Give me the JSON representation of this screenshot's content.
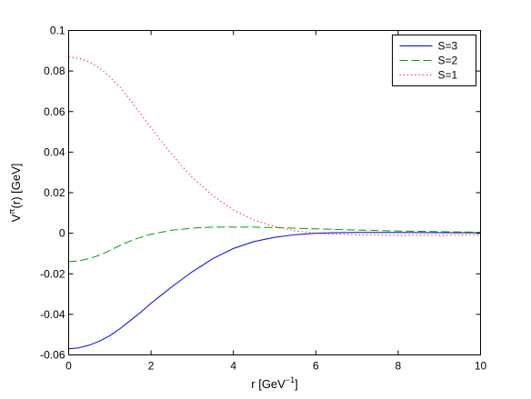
{
  "chart_data": {
    "type": "line",
    "xlabel_main": "r [GeV",
    "xlabel_sup": "−1",
    "xlabel_end": "]",
    "ylabel_main": "V",
    "ylabel_sup": "π",
    "ylabel_end": "(r) [GeV]",
    "xlim": [
      0,
      10
    ],
    "ylim": [
      -0.06,
      0.1
    ],
    "xticks": [
      0,
      2,
      4,
      6,
      8,
      10
    ],
    "xtick_labels": [
      "0",
      "2",
      "4",
      "6",
      "8",
      "10"
    ],
    "yticks": [
      -0.06,
      -0.04,
      -0.02,
      0,
      0.02,
      0.04,
      0.06,
      0.08,
      0.1
    ],
    "ytick_labels": [
      "-0.06",
      "-0.04",
      "-0.02",
      "0",
      "0.02",
      "0.04",
      "0.06",
      "0.08",
      "0.1"
    ],
    "grid": false,
    "legend_position": "top-right",
    "series": [
      {
        "name": "S=3",
        "color": "#0000ff",
        "dash": "solid",
        "x": [
          0,
          0.25,
          0.5,
          0.75,
          1,
          1.25,
          1.5,
          1.75,
          2,
          2.25,
          2.5,
          3,
          3.5,
          4,
          4.5,
          5,
          5.5,
          6,
          6.5,
          7,
          8,
          9,
          10
        ],
        "y": [
          -0.057,
          -0.0565,
          -0.0552,
          -0.0532,
          -0.0505,
          -0.047,
          -0.043,
          -0.039,
          -0.0345,
          -0.0305,
          -0.0265,
          -0.019,
          -0.0125,
          -0.0075,
          -0.0041,
          -0.002,
          -0.0007,
          0.0,
          0.0003,
          0.0004,
          0.0004,
          0.0003,
          0.0002
        ]
      },
      {
        "name": "S=2",
        "color": "#00a000",
        "dash": "dashed",
        "x": [
          0,
          0.25,
          0.5,
          0.75,
          1,
          1.25,
          1.5,
          1.75,
          2,
          2.5,
          3,
          3.5,
          4,
          4.5,
          5,
          6,
          7,
          8,
          9,
          10
        ],
        "y": [
          -0.014,
          -0.0136,
          -0.0125,
          -0.0108,
          -0.0085,
          -0.006,
          -0.0038,
          -0.002,
          -0.0005,
          0.0015,
          0.0025,
          0.003,
          0.003,
          0.003,
          0.0028,
          0.0022,
          0.0016,
          0.0011,
          0.0008,
          0.0005
        ]
      },
      {
        "name": "S=1",
        "color": "#ff0000",
        "dash": "dotted",
        "x": [
          0,
          0.25,
          0.5,
          0.75,
          1,
          1.25,
          1.5,
          1.75,
          2,
          2.25,
          2.5,
          2.75,
          3,
          3.5,
          4,
          4.5,
          5,
          5.5,
          6,
          7,
          8,
          9,
          10
        ],
        "y": [
          0.087,
          0.0862,
          0.0845,
          0.0815,
          0.077,
          0.072,
          0.0655,
          0.0588,
          0.052,
          0.0455,
          0.039,
          0.0332,
          0.0276,
          0.0185,
          0.0115,
          0.0065,
          0.0033,
          0.0012,
          0.0,
          -0.0008,
          -0.001,
          -0.001,
          -0.0009
        ]
      }
    ]
  }
}
